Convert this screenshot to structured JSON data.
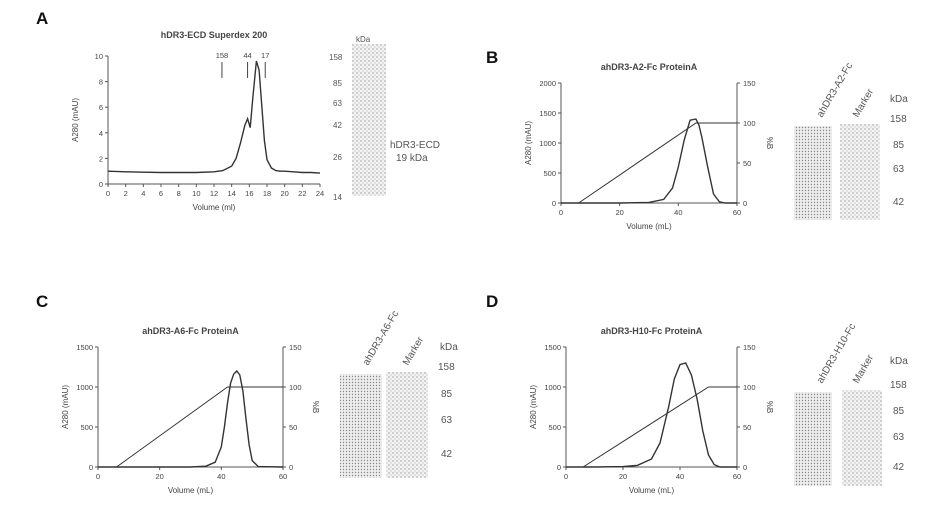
{
  "panels": {
    "A": {
      "letter": "A"
    },
    "B": {
      "letter": "B"
    },
    "C": {
      "letter": "C"
    },
    "D": {
      "letter": "D"
    }
  },
  "chart_data": [
    {
      "id": "A",
      "type": "line",
      "title": "hDR3-ECD Superdex 200",
      "xlabel": "Volume (ml)",
      "ylabel": "A280 (mAU)",
      "xlim": [
        0,
        24
      ],
      "ylim": [
        0,
        10
      ],
      "xticks": [
        0,
        2,
        4,
        6,
        8,
        10,
        12,
        14,
        16,
        18,
        20,
        22,
        24
      ],
      "yticks": [
        0,
        2,
        4,
        6,
        8,
        10
      ],
      "markers": [
        {
          "label": "158",
          "x": 12.9
        },
        {
          "label": "44",
          "x": 15.8
        },
        {
          "label": "17",
          "x": 17.8
        }
      ],
      "series": [
        {
          "x": [
            0,
            2,
            4,
            6,
            8,
            10,
            12,
            13,
            14,
            14.5,
            15,
            15.5,
            15.8,
            16.1,
            16.4,
            16.8,
            17.1,
            17.4,
            17.7,
            18,
            18.5,
            19,
            19.5,
            20,
            21,
            22,
            23,
            24
          ],
          "y": [
            1.0,
            0.95,
            0.92,
            0.9,
            0.9,
            0.9,
            0.95,
            1.05,
            1.4,
            2.0,
            3.2,
            4.6,
            5.1,
            4.4,
            6.8,
            9.6,
            8.9,
            6.2,
            3.4,
            1.9,
            1.25,
            1.05,
            1.0,
            1.0,
            0.95,
            0.9,
            0.9,
            0.85
          ]
        }
      ],
      "gel": {
        "marker_labels": [
          "158",
          "85",
          "63",
          "42",
          "26",
          "14"
        ],
        "top_label": "kDa",
        "band_label": [
          "hDR3-ECD",
          "19 kDa"
        ]
      }
    },
    {
      "id": "B",
      "type": "line",
      "title": "ahDR3-A2-Fc ProteinA",
      "xlabel": "Volume (mL)",
      "ylabel": "A280 (mAU)",
      "y2label": "%B",
      "xlim": [
        0,
        60
      ],
      "ylim": [
        0,
        2000
      ],
      "y2lim": [
        0,
        150
      ],
      "xticks": [
        0,
        20,
        40,
        60
      ],
      "yticks": [
        0,
        500,
        1000,
        1500,
        2000
      ],
      "y2ticks": [
        0,
        50,
        100,
        150
      ],
      "series": [
        {
          "name": "A280",
          "x": [
            0,
            10,
            20,
            30,
            35,
            38,
            40,
            42,
            44,
            46,
            47,
            48,
            50,
            52,
            54,
            56,
            60
          ],
          "y": [
            0,
            0,
            0,
            10,
            60,
            250,
            600,
            1050,
            1380,
            1400,
            1300,
            1100,
            600,
            150,
            20,
            0,
            0
          ]
        },
        {
          "name": "%B",
          "axis": "y2",
          "x": [
            6,
            46,
            60
          ],
          "y": [
            0,
            100,
            100
          ]
        }
      ],
      "gel": {
        "lanes": [
          "ahDR3-A2-Fc",
          "Marker"
        ],
        "unit": "kDa",
        "marker_labels": [
          "158",
          "85",
          "63",
          "42"
        ]
      }
    },
    {
      "id": "C",
      "type": "line",
      "title": "ahDR3-A6-Fc ProteinA",
      "xlabel": "Volume (mL)",
      "ylabel": "A280 (mAU)",
      "y2label": "%B",
      "xlim": [
        0,
        60
      ],
      "ylim": [
        0,
        1500
      ],
      "y2lim": [
        0,
        150
      ],
      "xticks": [
        0,
        20,
        40,
        60
      ],
      "yticks": [
        0,
        500,
        1000,
        1500
      ],
      "y2ticks": [
        0,
        50,
        100,
        150
      ],
      "series": [
        {
          "name": "A280",
          "x": [
            0,
            10,
            20,
            30,
            35,
            38,
            40,
            41,
            42,
            43,
            44,
            45,
            46,
            47,
            48,
            49,
            50,
            52,
            60
          ],
          "y": [
            0,
            0,
            0,
            0,
            10,
            60,
            250,
            500,
            800,
            1050,
            1160,
            1200,
            1150,
            950,
            600,
            280,
            80,
            5,
            0
          ]
        },
        {
          "name": "%B",
          "axis": "y2",
          "x": [
            6,
            42,
            60
          ],
          "y": [
            0,
            100,
            100
          ]
        }
      ],
      "gel": {
        "lanes": [
          "ahDR3-A6-Fc",
          "Marker"
        ],
        "unit": "kDa",
        "marker_labels": [
          "158",
          "85",
          "63",
          "42"
        ]
      }
    },
    {
      "id": "D",
      "type": "line",
      "title": "ahDR3-H10-Fc ProteinA",
      "xlabel": "Volume (mL)",
      "ylabel": "A280 (mAU)",
      "y2label": "%B",
      "xlim": [
        0,
        60
      ],
      "ylim": [
        0,
        1500
      ],
      "y2lim": [
        0,
        150
      ],
      "xticks": [
        0,
        20,
        40,
        60
      ],
      "yticks": [
        0,
        500,
        1000,
        1500
      ],
      "y2ticks": [
        0,
        50,
        100,
        150
      ],
      "series": [
        {
          "name": "A280",
          "x": [
            0,
            10,
            20,
            25,
            30,
            33,
            36,
            38,
            40,
            42,
            44,
            46,
            48,
            50,
            52,
            54,
            60
          ],
          "y": [
            0,
            0,
            5,
            20,
            100,
            300,
            750,
            1100,
            1280,
            1300,
            1150,
            850,
            450,
            150,
            30,
            0,
            0
          ]
        },
        {
          "name": "%B",
          "axis": "y2",
          "x": [
            6,
            50,
            60
          ],
          "y": [
            0,
            100,
            100
          ]
        }
      ],
      "gel": {
        "lanes": [
          "ahDR3-H10-Fc",
          "Marker"
        ],
        "unit": "kDa",
        "marker_labels": [
          "158",
          "85",
          "63",
          "42"
        ]
      }
    }
  ]
}
